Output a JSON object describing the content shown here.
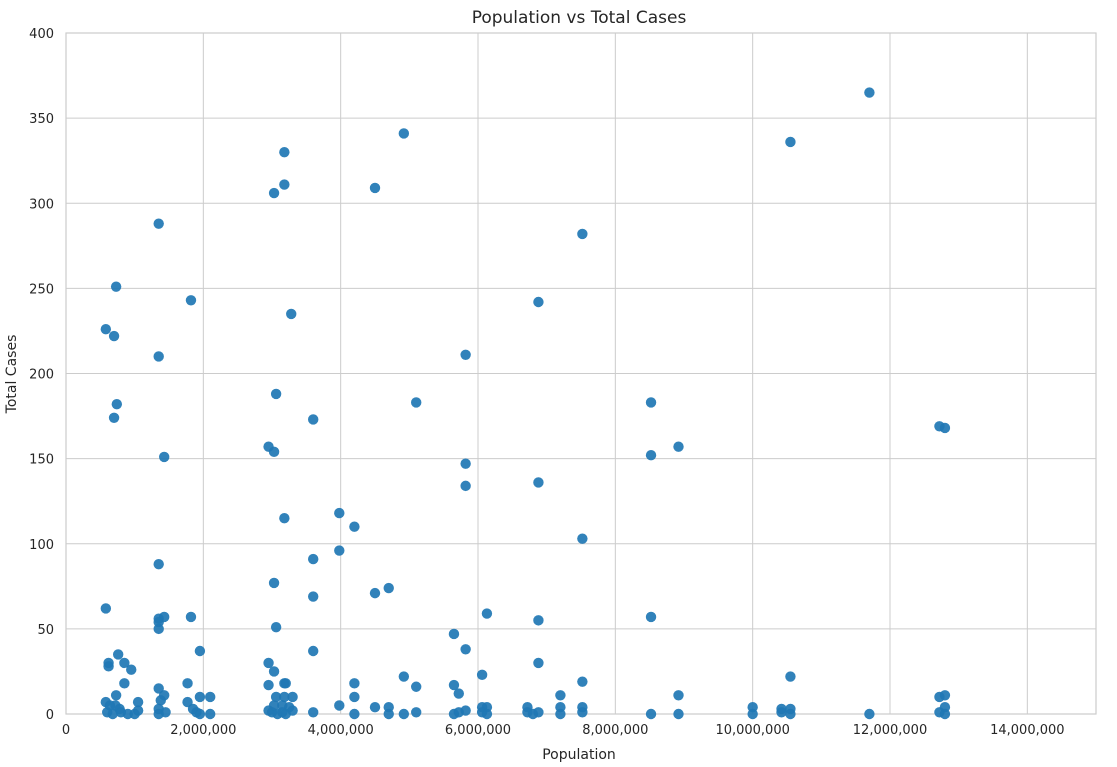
{
  "chart_data": {
    "type": "scatter",
    "title": "Population vs Total Cases",
    "xlabel": "Population",
    "ylabel": "Total Cases",
    "xlim": [
      0,
      15000000
    ],
    "ylim": [
      0,
      400
    ],
    "xticks": [
      0,
      2000000,
      4000000,
      6000000,
      8000000,
      10000000,
      12000000,
      14000000
    ],
    "xtick_labels": [
      "0",
      "2,000,000",
      "4,000,000",
      "6,000,000",
      "8,000,000",
      "10,000,000",
      "12,000,000",
      "14,000,000"
    ],
    "yticks": [
      0,
      50,
      100,
      150,
      200,
      250,
      300,
      350,
      400
    ],
    "ytick_labels": [
      "0",
      "50",
      "100",
      "150",
      "200",
      "250",
      "300",
      "350",
      "400"
    ],
    "grid": true,
    "marker_color": "#1f77b4",
    "points": [
      {
        "x": 580000,
        "y": 226
      },
      {
        "x": 700000,
        "y": 222
      },
      {
        "x": 730000,
        "y": 251
      },
      {
        "x": 740000,
        "y": 182
      },
      {
        "x": 700000,
        "y": 174
      },
      {
        "x": 580000,
        "y": 62
      },
      {
        "x": 620000,
        "y": 30
      },
      {
        "x": 620000,
        "y": 28
      },
      {
        "x": 760000,
        "y": 35
      },
      {
        "x": 850000,
        "y": 30
      },
      {
        "x": 950000,
        "y": 26
      },
      {
        "x": 850000,
        "y": 18
      },
      {
        "x": 730000,
        "y": 11
      },
      {
        "x": 580000,
        "y": 7
      },
      {
        "x": 640000,
        "y": 5
      },
      {
        "x": 720000,
        "y": 5
      },
      {
        "x": 780000,
        "y": 3
      },
      {
        "x": 600000,
        "y": 1
      },
      {
        "x": 680000,
        "y": 0
      },
      {
        "x": 800000,
        "y": 1
      },
      {
        "x": 900000,
        "y": 0
      },
      {
        "x": 1000000,
        "y": 0
      },
      {
        "x": 1050000,
        "y": 7
      },
      {
        "x": 1050000,
        "y": 2
      },
      {
        "x": 1350000,
        "y": 288
      },
      {
        "x": 1350000,
        "y": 210
      },
      {
        "x": 1430000,
        "y": 151
      },
      {
        "x": 1350000,
        "y": 88
      },
      {
        "x": 1350000,
        "y": 56
      },
      {
        "x": 1430000,
        "y": 57
      },
      {
        "x": 1350000,
        "y": 50
      },
      {
        "x": 1350000,
        "y": 54
      },
      {
        "x": 1350000,
        "y": 15
      },
      {
        "x": 1430000,
        "y": 11
      },
      {
        "x": 1380000,
        "y": 8
      },
      {
        "x": 1350000,
        "y": 3
      },
      {
        "x": 1450000,
        "y": 1
      },
      {
        "x": 1350000,
        "y": 0
      },
      {
        "x": 1820000,
        "y": 243
      },
      {
        "x": 1820000,
        "y": 57
      },
      {
        "x": 1950000,
        "y": 37
      },
      {
        "x": 1770000,
        "y": 18
      },
      {
        "x": 1950000,
        "y": 10
      },
      {
        "x": 2100000,
        "y": 10
      },
      {
        "x": 1770000,
        "y": 7
      },
      {
        "x": 1850000,
        "y": 3
      },
      {
        "x": 1900000,
        "y": 1
      },
      {
        "x": 1950000,
        "y": 0
      },
      {
        "x": 2100000,
        "y": 0
      },
      {
        "x": 2950000,
        "y": 157
      },
      {
        "x": 3030000,
        "y": 306
      },
      {
        "x": 3180000,
        "y": 330
      },
      {
        "x": 3180000,
        "y": 311
      },
      {
        "x": 3280000,
        "y": 235
      },
      {
        "x": 3060000,
        "y": 188
      },
      {
        "x": 3030000,
        "y": 154
      },
      {
        "x": 3180000,
        "y": 115
      },
      {
        "x": 3030000,
        "y": 77
      },
      {
        "x": 3060000,
        "y": 51
      },
      {
        "x": 2950000,
        "y": 30
      },
      {
        "x": 3030000,
        "y": 25
      },
      {
        "x": 3180000,
        "y": 18
      },
      {
        "x": 3200000,
        "y": 18
      },
      {
        "x": 2950000,
        "y": 17
      },
      {
        "x": 3060000,
        "y": 10
      },
      {
        "x": 3180000,
        "y": 10
      },
      {
        "x": 3300000,
        "y": 10
      },
      {
        "x": 3030000,
        "y": 5
      },
      {
        "x": 3150000,
        "y": 5
      },
      {
        "x": 3250000,
        "y": 4
      },
      {
        "x": 2950000,
        "y": 2
      },
      {
        "x": 3000000,
        "y": 1
      },
      {
        "x": 3080000,
        "y": 0
      },
      {
        "x": 3150000,
        "y": 1
      },
      {
        "x": 3200000,
        "y": 0
      },
      {
        "x": 3300000,
        "y": 2
      },
      {
        "x": 3600000,
        "y": 173
      },
      {
        "x": 3600000,
        "y": 91
      },
      {
        "x": 3600000,
        "y": 69
      },
      {
        "x": 3600000,
        "y": 37
      },
      {
        "x": 3600000,
        "y": 1
      },
      {
        "x": 3980000,
        "y": 118
      },
      {
        "x": 3980000,
        "y": 96
      },
      {
        "x": 4200000,
        "y": 110
      },
      {
        "x": 3980000,
        "y": 5
      },
      {
        "x": 4200000,
        "y": 18
      },
      {
        "x": 4200000,
        "y": 10
      },
      {
        "x": 4200000,
        "y": 0
      },
      {
        "x": 4500000,
        "y": 309
      },
      {
        "x": 4500000,
        "y": 71
      },
      {
        "x": 4700000,
        "y": 74
      },
      {
        "x": 4500000,
        "y": 4
      },
      {
        "x": 4700000,
        "y": 4
      },
      {
        "x": 4700000,
        "y": 0
      },
      {
        "x": 4920000,
        "y": 341
      },
      {
        "x": 5100000,
        "y": 183
      },
      {
        "x": 4920000,
        "y": 22
      },
      {
        "x": 5100000,
        "y": 16
      },
      {
        "x": 4920000,
        "y": 0
      },
      {
        "x": 5100000,
        "y": 1
      },
      {
        "x": 5650000,
        "y": 47
      },
      {
        "x": 5650000,
        "y": 17
      },
      {
        "x": 5720000,
        "y": 12
      },
      {
        "x": 5650000,
        "y": 0
      },
      {
        "x": 5720000,
        "y": 1
      },
      {
        "x": 5820000,
        "y": 211
      },
      {
        "x": 5820000,
        "y": 147
      },
      {
        "x": 5820000,
        "y": 134
      },
      {
        "x": 5820000,
        "y": 38
      },
      {
        "x": 5820000,
        "y": 2
      },
      {
        "x": 6060000,
        "y": 23
      },
      {
        "x": 6130000,
        "y": 59
      },
      {
        "x": 6060000,
        "y": 4
      },
      {
        "x": 6130000,
        "y": 4
      },
      {
        "x": 6060000,
        "y": 1
      },
      {
        "x": 6130000,
        "y": 0
      },
      {
        "x": 6720000,
        "y": 4
      },
      {
        "x": 6720000,
        "y": 1
      },
      {
        "x": 6800000,
        "y": 0
      },
      {
        "x": 6880000,
        "y": 242
      },
      {
        "x": 6880000,
        "y": 136
      },
      {
        "x": 6880000,
        "y": 55
      },
      {
        "x": 6880000,
        "y": 30
      },
      {
        "x": 6880000,
        "y": 1
      },
      {
        "x": 7200000,
        "y": 11
      },
      {
        "x": 7200000,
        "y": 4
      },
      {
        "x": 7200000,
        "y": 0
      },
      {
        "x": 7520000,
        "y": 282
      },
      {
        "x": 7520000,
        "y": 103
      },
      {
        "x": 7520000,
        "y": 19
      },
      {
        "x": 7520000,
        "y": 4
      },
      {
        "x": 7520000,
        "y": 1
      },
      {
        "x": 8520000,
        "y": 183
      },
      {
        "x": 8520000,
        "y": 152
      },
      {
        "x": 8520000,
        "y": 57
      },
      {
        "x": 8520000,
        "y": 0
      },
      {
        "x": 8920000,
        "y": 157
      },
      {
        "x": 8920000,
        "y": 11
      },
      {
        "x": 8920000,
        "y": 0
      },
      {
        "x": 10000000,
        "y": 4
      },
      {
        "x": 10000000,
        "y": 0
      },
      {
        "x": 10420000,
        "y": 3
      },
      {
        "x": 10420000,
        "y": 1
      },
      {
        "x": 10550000,
        "y": 336
      },
      {
        "x": 10550000,
        "y": 22
      },
      {
        "x": 10550000,
        "y": 3
      },
      {
        "x": 10550000,
        "y": 0
      },
      {
        "x": 11700000,
        "y": 365
      },
      {
        "x": 11700000,
        "y": 0
      },
      {
        "x": 12720000,
        "y": 169
      },
      {
        "x": 12800000,
        "y": 168
      },
      {
        "x": 12720000,
        "y": 10
      },
      {
        "x": 12800000,
        "y": 11
      },
      {
        "x": 12800000,
        "y": 4
      },
      {
        "x": 12720000,
        "y": 1
      },
      {
        "x": 12800000,
        "y": 0
      }
    ]
  }
}
